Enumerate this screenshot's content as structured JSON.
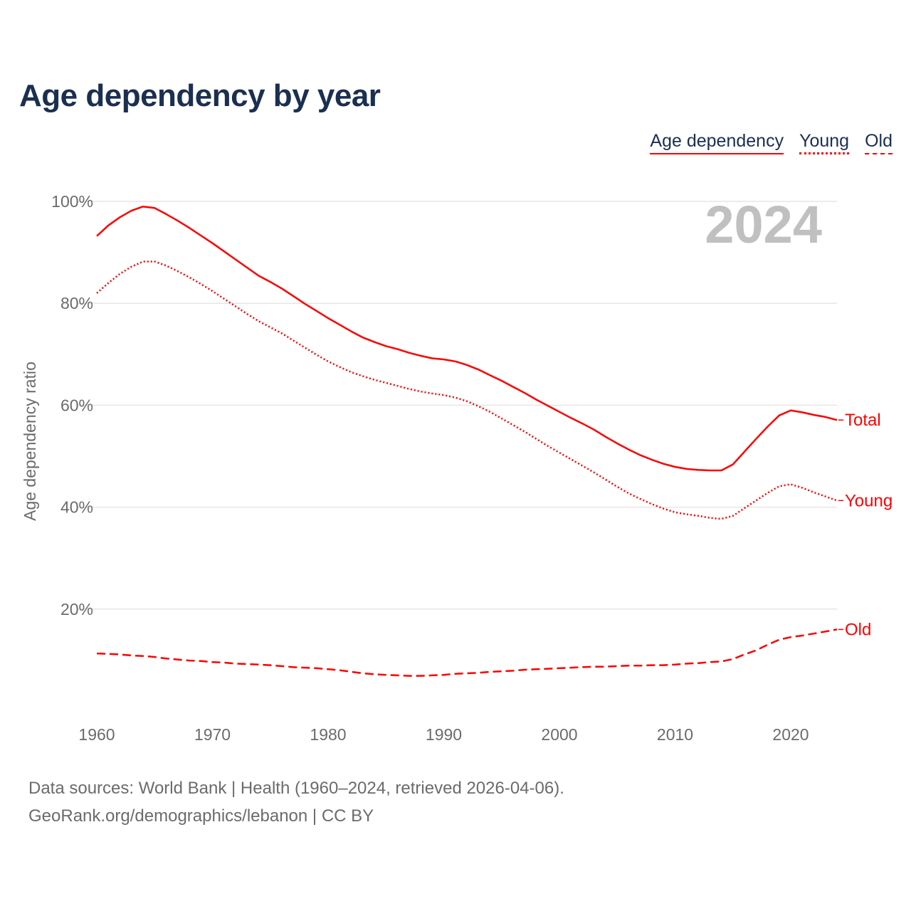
{
  "title": "Age dependency by year",
  "legend": [
    "Age dependency",
    "Young",
    "Old"
  ],
  "year_badge": "2024",
  "footer": {
    "line1": "Data sources: World Bank | Health (1960–2024, retrieved 2026-04-06).",
    "line2": "GeoRank.org/demographics/lebanon | CC BY"
  },
  "chart_data": {
    "type": "line",
    "title": "Age dependency by year",
    "xlabel": "",
    "ylabel": "Age dependency ratio",
    "xlim": [
      1960,
      2024
    ],
    "ylim": [
      0,
      100
    ],
    "x_ticks": [
      "1960",
      "1970",
      "1980",
      "1990",
      "2000",
      "2010",
      "2020"
    ],
    "y_ticks": [
      "20%",
      "40%",
      "60%",
      "80%",
      "100%"
    ],
    "y_tick_values": [
      20,
      40,
      60,
      80,
      100
    ],
    "grid": true,
    "color": "#ff0000",
    "x_start": 1960,
    "series": [
      {
        "name": "Total",
        "style": "solid",
        "values": [
          93.2,
          95.3,
          96.9,
          98.2,
          99.0,
          98.7,
          97.5,
          96.2,
          94.8,
          93.3,
          91.8,
          90.2,
          88.6,
          87.0,
          85.4,
          84.2,
          82.9,
          81.4,
          79.9,
          78.5,
          77.1,
          75.8,
          74.5,
          73.3,
          72.4,
          71.6,
          71.0,
          70.3,
          69.7,
          69.2,
          69.0,
          68.6,
          67.9,
          67.0,
          65.9,
          64.8,
          63.6,
          62.4,
          61.1,
          59.9,
          58.7,
          57.5,
          56.4,
          55.2,
          53.8,
          52.5,
          51.3,
          50.2,
          49.3,
          48.5,
          47.9,
          47.5,
          47.3,
          47.2,
          47.2,
          48.4,
          50.9,
          53.4,
          55.8,
          58.0,
          59.0,
          58.6,
          58.1,
          57.7,
          57.1
        ]
      },
      {
        "name": "Young",
        "style": "dotted",
        "values": [
          82.0,
          84.0,
          85.8,
          87.2,
          88.2,
          88.2,
          87.4,
          86.3,
          85.1,
          83.8,
          82.4,
          80.9,
          79.4,
          77.9,
          76.5,
          75.3,
          74.1,
          72.7,
          71.3,
          69.9,
          68.6,
          67.5,
          66.5,
          65.7,
          65.0,
          64.4,
          63.8,
          63.2,
          62.7,
          62.3,
          62.0,
          61.5,
          60.8,
          59.8,
          58.7,
          57.4,
          56.1,
          54.8,
          53.4,
          52.0,
          50.7,
          49.4,
          48.1,
          46.8,
          45.4,
          44.0,
          42.7,
          41.6,
          40.6,
          39.7,
          39.0,
          38.6,
          38.3,
          37.9,
          37.7,
          38.3,
          39.8,
          41.3,
          42.8,
          44.1,
          44.5,
          43.8,
          42.9,
          42.1,
          41.3
        ]
      },
      {
        "name": "Old",
        "style": "dashed",
        "values": [
          11.3,
          11.2,
          11.1,
          10.9,
          10.8,
          10.6,
          10.3,
          10.1,
          9.9,
          9.8,
          9.6,
          9.5,
          9.3,
          9.2,
          9.1,
          9.0,
          8.8,
          8.6,
          8.5,
          8.4,
          8.2,
          8.0,
          7.7,
          7.4,
          7.2,
          7.1,
          7.0,
          6.9,
          6.9,
          7.0,
          7.1,
          7.3,
          7.4,
          7.5,
          7.7,
          7.8,
          7.9,
          8.1,
          8.2,
          8.3,
          8.4,
          8.5,
          8.6,
          8.7,
          8.7,
          8.8,
          8.9,
          8.9,
          9.0,
          9.0,
          9.1,
          9.3,
          9.4,
          9.6,
          9.7,
          10.2,
          11.1,
          11.9,
          13.0,
          14.0,
          14.5,
          14.8,
          15.2,
          15.6,
          16.0
        ]
      }
    ]
  }
}
